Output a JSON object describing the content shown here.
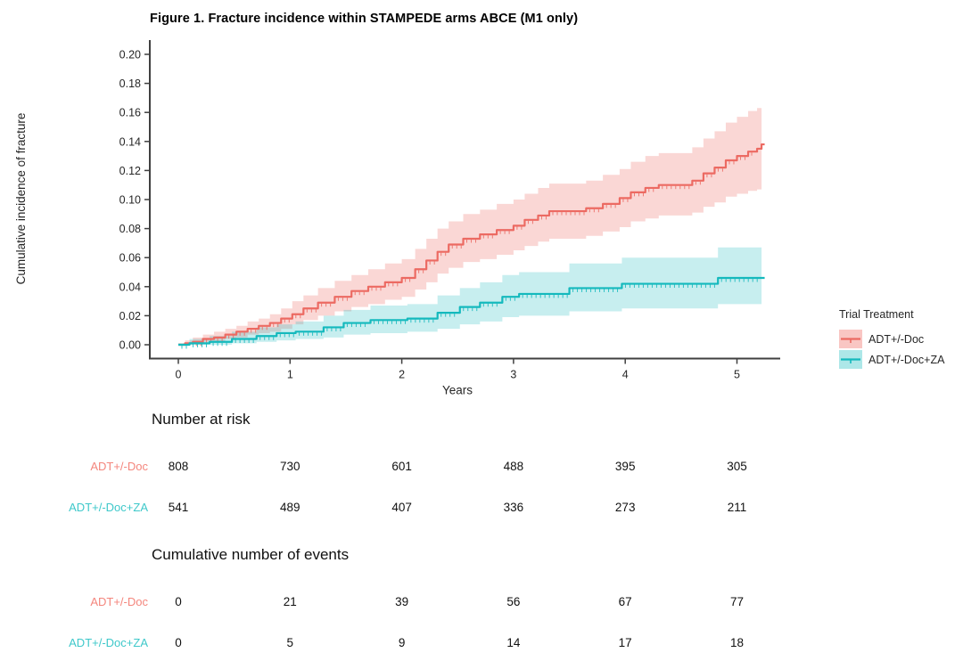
{
  "figure": {
    "title": "Figure 1. Fracture incidence within STAMPEDE arms ABCE (M1 only)"
  },
  "chart_data": {
    "type": "line",
    "subtype": "kaplan-meier-cumulative-incidence-step",
    "title": "Figure 1. Fracture incidence within STAMPEDE arms ABCE (M1 only)",
    "xlabel": "Years",
    "ylabel": "Cumulative incidence of fracture",
    "xlim": [
      0,
      5.36
    ],
    "ylim": [
      0,
      0.205
    ],
    "x_ticks": [
      0,
      1,
      2,
      3,
      4,
      5
    ],
    "y_ticks": [
      "0.00",
      "0.02",
      "0.04",
      "0.06",
      "0.08",
      "0.10",
      "0.12",
      "0.14",
      "0.16",
      "0.18",
      "0.20"
    ],
    "grid": false,
    "legend": {
      "title": "Trial Treatment",
      "position": "right",
      "entries": [
        "ADT+/-Doc",
        "ADT+/-Doc+ZA"
      ]
    },
    "step_format": "[years, cumulative_incidence, ci_lower, ci_upper]",
    "series": [
      {
        "name": "ADT+/-Doc",
        "color": "#EC6A62",
        "fill": "rgba(238,106,98,0.27)",
        "swatch_fill": "rgba(238,106,98,0.38)",
        "label_color": "#F4867D",
        "steps": [
          [
            0.0,
            0.0,
            0.0,
            0.001
          ],
          [
            0.06,
            0.001,
            0.0,
            0.003
          ],
          [
            0.13,
            0.002,
            0.001,
            0.005
          ],
          [
            0.22,
            0.004,
            0.002,
            0.007
          ],
          [
            0.32,
            0.005,
            0.002,
            0.009
          ],
          [
            0.42,
            0.007,
            0.004,
            0.011
          ],
          [
            0.52,
            0.009,
            0.005,
            0.013
          ],
          [
            0.62,
            0.011,
            0.007,
            0.016
          ],
          [
            0.72,
            0.013,
            0.008,
            0.018
          ],
          [
            0.82,
            0.015,
            0.009,
            0.021
          ],
          [
            0.92,
            0.018,
            0.011,
            0.025
          ],
          [
            1.02,
            0.021,
            0.014,
            0.03
          ],
          [
            1.12,
            0.025,
            0.017,
            0.034
          ],
          [
            1.25,
            0.029,
            0.02,
            0.039
          ],
          [
            1.4,
            0.033,
            0.023,
            0.044
          ],
          [
            1.55,
            0.037,
            0.026,
            0.048
          ],
          [
            1.7,
            0.04,
            0.028,
            0.052
          ],
          [
            1.85,
            0.043,
            0.031,
            0.056
          ],
          [
            2.0,
            0.046,
            0.033,
            0.059
          ],
          [
            2.12,
            0.052,
            0.038,
            0.066
          ],
          [
            2.22,
            0.058,
            0.043,
            0.073
          ],
          [
            2.32,
            0.064,
            0.049,
            0.08
          ],
          [
            2.42,
            0.069,
            0.053,
            0.085
          ],
          [
            2.55,
            0.073,
            0.057,
            0.09
          ],
          [
            2.7,
            0.076,
            0.059,
            0.093
          ],
          [
            2.85,
            0.079,
            0.062,
            0.097
          ],
          [
            3.0,
            0.082,
            0.065,
            0.1
          ],
          [
            3.1,
            0.086,
            0.068,
            0.104
          ],
          [
            3.22,
            0.089,
            0.071,
            0.108
          ],
          [
            3.32,
            0.092,
            0.073,
            0.111
          ],
          [
            3.65,
            0.094,
            0.075,
            0.113
          ],
          [
            3.8,
            0.097,
            0.078,
            0.117
          ],
          [
            3.95,
            0.101,
            0.081,
            0.121
          ],
          [
            4.05,
            0.105,
            0.085,
            0.126
          ],
          [
            4.18,
            0.108,
            0.087,
            0.13
          ],
          [
            4.3,
            0.11,
            0.089,
            0.132
          ],
          [
            4.6,
            0.113,
            0.091,
            0.136
          ],
          [
            4.7,
            0.118,
            0.095,
            0.142
          ],
          [
            4.8,
            0.122,
            0.098,
            0.147
          ],
          [
            4.9,
            0.127,
            0.102,
            0.153
          ],
          [
            5.0,
            0.13,
            0.104,
            0.157
          ],
          [
            5.1,
            0.133,
            0.106,
            0.161
          ],
          [
            5.18,
            0.135,
            0.107,
            0.163
          ],
          [
            5.22,
            0.138,
            0.11,
            0.169
          ]
        ]
      },
      {
        "name": "ADT+/-Doc+ZA",
        "color": "#14B9BD",
        "fill": "rgba(20,185,189,0.24)",
        "swatch_fill": "rgba(20,185,189,0.35)",
        "label_color": "#3EC8CA",
        "steps": [
          [
            0.0,
            0.0,
            0.0,
            0.001
          ],
          [
            0.1,
            0.001,
            0.0,
            0.004
          ],
          [
            0.28,
            0.002,
            0.0,
            0.006
          ],
          [
            0.48,
            0.004,
            0.001,
            0.009
          ],
          [
            0.7,
            0.006,
            0.002,
            0.012
          ],
          [
            0.88,
            0.008,
            0.003,
            0.014
          ],
          [
            1.05,
            0.009,
            0.004,
            0.016
          ],
          [
            1.3,
            0.012,
            0.005,
            0.02
          ],
          [
            1.48,
            0.015,
            0.007,
            0.024
          ],
          [
            1.72,
            0.017,
            0.008,
            0.027
          ],
          [
            2.05,
            0.018,
            0.009,
            0.028
          ],
          [
            2.32,
            0.022,
            0.011,
            0.034
          ],
          [
            2.52,
            0.026,
            0.014,
            0.039
          ],
          [
            2.7,
            0.029,
            0.016,
            0.043
          ],
          [
            2.9,
            0.033,
            0.019,
            0.048
          ],
          [
            3.05,
            0.035,
            0.02,
            0.05
          ],
          [
            3.5,
            0.039,
            0.023,
            0.056
          ],
          [
            3.97,
            0.042,
            0.025,
            0.06
          ],
          [
            4.83,
            0.046,
            0.028,
            0.067
          ],
          [
            5.22,
            0.046,
            0.028,
            0.067
          ]
        ]
      }
    ]
  },
  "risk_table": {
    "heading": "Number at risk",
    "time_points": [
      0,
      1,
      2,
      3,
      4,
      5
    ],
    "rows": [
      {
        "label": "ADT+/-Doc",
        "values": [
          "808",
          "730",
          "601",
          "488",
          "395",
          "305"
        ]
      },
      {
        "label": "ADT+/-Doc+ZA",
        "values": [
          "541",
          "489",
          "407",
          "336",
          "273",
          "211"
        ]
      }
    ]
  },
  "events_table": {
    "heading": "Cumulative number of events",
    "time_points": [
      0,
      1,
      2,
      3,
      4,
      5
    ],
    "rows": [
      {
        "label": "ADT+/-Doc",
        "values": [
          "0",
          "21",
          "39",
          "56",
          "67",
          "77"
        ]
      },
      {
        "label": "ADT+/-Doc+ZA",
        "values": [
          "0",
          "5",
          "9",
          "14",
          "17",
          "18"
        ]
      }
    ]
  }
}
